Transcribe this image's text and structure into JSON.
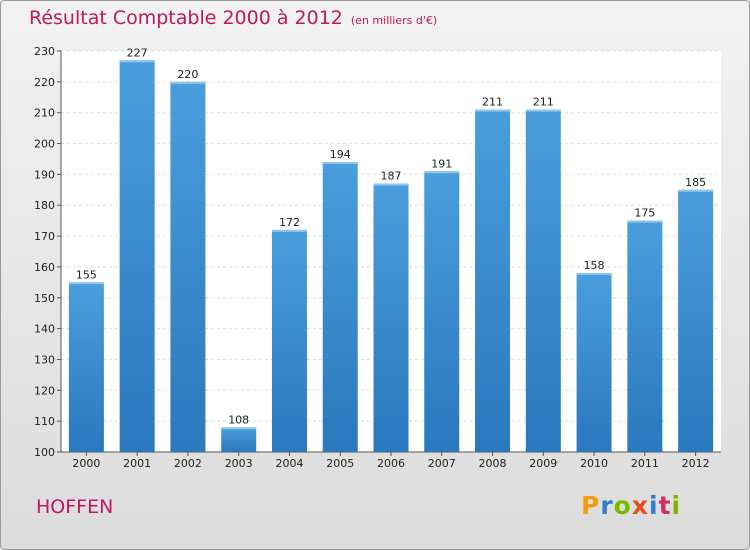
{
  "title": "Résultat Comptable 2000 à 2012",
  "subtitle": "(en milliers d'€)",
  "city": "HOFFEN",
  "logo": {
    "letters": [
      "P",
      "r",
      "o",
      "x",
      "i",
      "t",
      "i"
    ],
    "colors": [
      "#f39c12",
      "#2f80c8",
      "#7ab800",
      "#e84e1b",
      "#2f80c8",
      "#d12f6a",
      "#7ab800"
    ]
  },
  "colors": {
    "bar": "#4a9edc",
    "bar_dark": "#2a78be",
    "accent": "#c0185a"
  },
  "chart_data": {
    "type": "bar",
    "categories": [
      "2000",
      "2001",
      "2002",
      "2003",
      "2004",
      "2005",
      "2006",
      "2007",
      "2008",
      "2009",
      "2010",
      "2011",
      "2012"
    ],
    "values": [
      155,
      227,
      220,
      108,
      172,
      194,
      187,
      191,
      211,
      211,
      158,
      175,
      185
    ],
    "ylim": [
      100,
      230
    ],
    "yticks": [
      100,
      110,
      120,
      130,
      140,
      150,
      160,
      170,
      180,
      190,
      200,
      210,
      220,
      230
    ],
    "grid": true,
    "xlabel": "",
    "ylabel": ""
  }
}
